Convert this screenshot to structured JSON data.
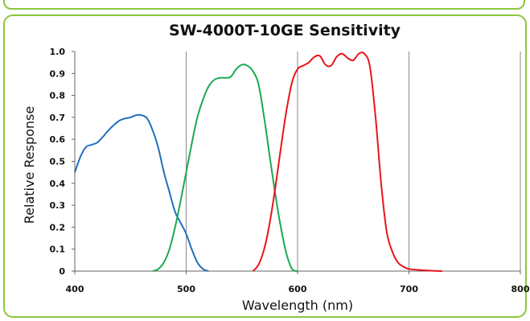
{
  "chart_data": {
    "type": "line",
    "title": "SW-4000T-10GE Sensitivity",
    "xlabel": "Wavelength (nm)",
    "ylabel": "Relative Response",
    "xlim": [
      400,
      800
    ],
    "ylim": [
      0,
      1.0
    ],
    "xticks": [
      400,
      500,
      600,
      700,
      800
    ],
    "xtick_labels": [
      "400",
      "500",
      "600",
      "700",
      "800"
    ],
    "yticks": [
      0,
      0.1,
      0.2,
      0.3,
      0.4,
      0.5,
      0.6,
      0.7,
      0.8,
      0.9,
      1.0
    ],
    "ytick_labels": [
      "0",
      "0.1",
      "0.2",
      "0.3",
      "0.4",
      "0.5",
      "0.6",
      "0.7",
      "0.8",
      "0.9",
      "1.0"
    ],
    "grid": "vertical",
    "legend": "none",
    "series": [
      {
        "color": "#1f6fbf",
        "x": [
          400,
          405,
          410,
          415,
          420,
          425,
          430,
          435,
          440,
          445,
          450,
          455,
          460,
          465,
          470,
          475,
          480,
          485,
          490,
          495,
          500,
          505,
          510,
          515,
          520
        ],
        "y": [
          0.45,
          0.52,
          0.565,
          0.575,
          0.585,
          0.61,
          0.64,
          0.665,
          0.685,
          0.695,
          0.7,
          0.71,
          0.71,
          0.695,
          0.64,
          0.56,
          0.45,
          0.36,
          0.27,
          0.22,
          0.17,
          0.1,
          0.04,
          0.01,
          0.0
        ]
      },
      {
        "color": "#1aaa50",
        "x": [
          470,
          475,
          480,
          485,
          490,
          495,
          500,
          505,
          510,
          515,
          520,
          525,
          530,
          535,
          540,
          545,
          550,
          555,
          560,
          565,
          570,
          575,
          580,
          585,
          590,
          595,
          600
        ],
        "y": [
          0.0,
          0.01,
          0.04,
          0.1,
          0.2,
          0.32,
          0.45,
          0.58,
          0.7,
          0.78,
          0.84,
          0.87,
          0.88,
          0.88,
          0.885,
          0.92,
          0.94,
          0.935,
          0.91,
          0.85,
          0.7,
          0.52,
          0.35,
          0.2,
          0.08,
          0.01,
          0.0
        ]
      },
      {
        "color": "#e8141b",
        "x": [
          560,
          565,
          570,
          575,
          580,
          585,
          590,
          595,
          600,
          605,
          610,
          615,
          620,
          625,
          630,
          635,
          640,
          645,
          650,
          655,
          660,
          665,
          670,
          675,
          680,
          685,
          690,
          695,
          700,
          710,
          720,
          730
        ],
        "y": [
          0.0,
          0.03,
          0.1,
          0.22,
          0.38,
          0.56,
          0.73,
          0.86,
          0.92,
          0.935,
          0.95,
          0.975,
          0.98,
          0.94,
          0.935,
          0.975,
          0.99,
          0.97,
          0.96,
          0.99,
          0.99,
          0.93,
          0.7,
          0.4,
          0.18,
          0.09,
          0.04,
          0.02,
          0.01,
          0.005,
          0.002,
          0.0
        ]
      }
    ]
  }
}
